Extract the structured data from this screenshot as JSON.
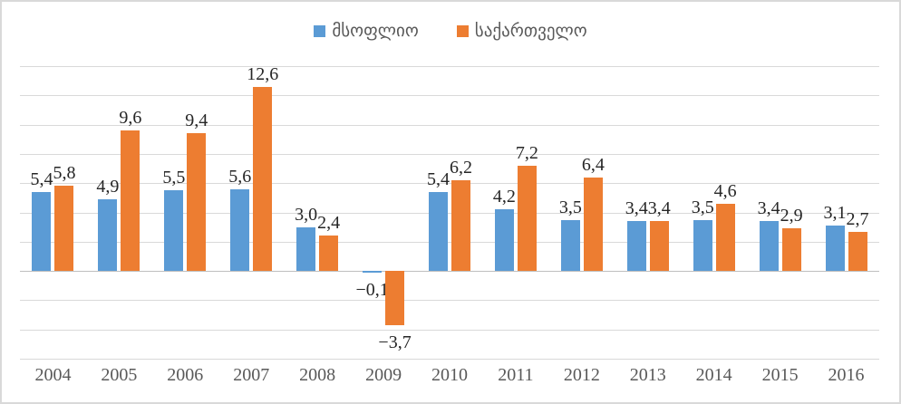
{
  "chart_data": {
    "type": "bar",
    "title": "",
    "categories": [
      "2004",
      "2005",
      "2006",
      "2007",
      "2008",
      "2009",
      "2010",
      "2011",
      "2012",
      "2013",
      "2014",
      "2015",
      "2016"
    ],
    "series": [
      {
        "name": "მსოფლიო",
        "color": "#5B9BD5",
        "values": [
          5.4,
          4.9,
          5.5,
          5.6,
          3.0,
          -0.1,
          5.4,
          4.2,
          3.5,
          3.4,
          3.5,
          3.4,
          3.1
        ],
        "labels": [
          "5,4",
          "4,9",
          "5,5",
          "5,6",
          "3,0",
          "−0,1",
          "5,4",
          "4,2",
          "3,5",
          "3,4",
          "3,5",
          "3,4",
          "3,1"
        ]
      },
      {
        "name": "საქართველო",
        "color": "#ED7D31",
        "values": [
          5.8,
          9.6,
          9.4,
          12.6,
          2.4,
          -3.7,
          6.2,
          7.2,
          6.4,
          3.4,
          4.6,
          2.9,
          2.7
        ],
        "labels": [
          "5,8",
          "9,6",
          "9,4",
          "12,6",
          "2,4",
          "−3,7",
          "6,2",
          "7,2",
          "6,4",
          "3,4",
          "4,6",
          "2,9",
          "2,7"
        ]
      }
    ],
    "ylim": [
      -6,
      14
    ],
    "gridline_step": 2,
    "grid": true,
    "y_tick_labels_visible": false,
    "legend_position": "top",
    "decimal_separator": ","
  },
  "colors": {
    "background": "#FFFFFF",
    "border": "#D9D9D9",
    "gridline": "#D9D9D9",
    "zero_axis": "#BFBFBF",
    "data_label": "#262626",
    "tick_label": "#595959",
    "legend_text": "#595959"
  }
}
